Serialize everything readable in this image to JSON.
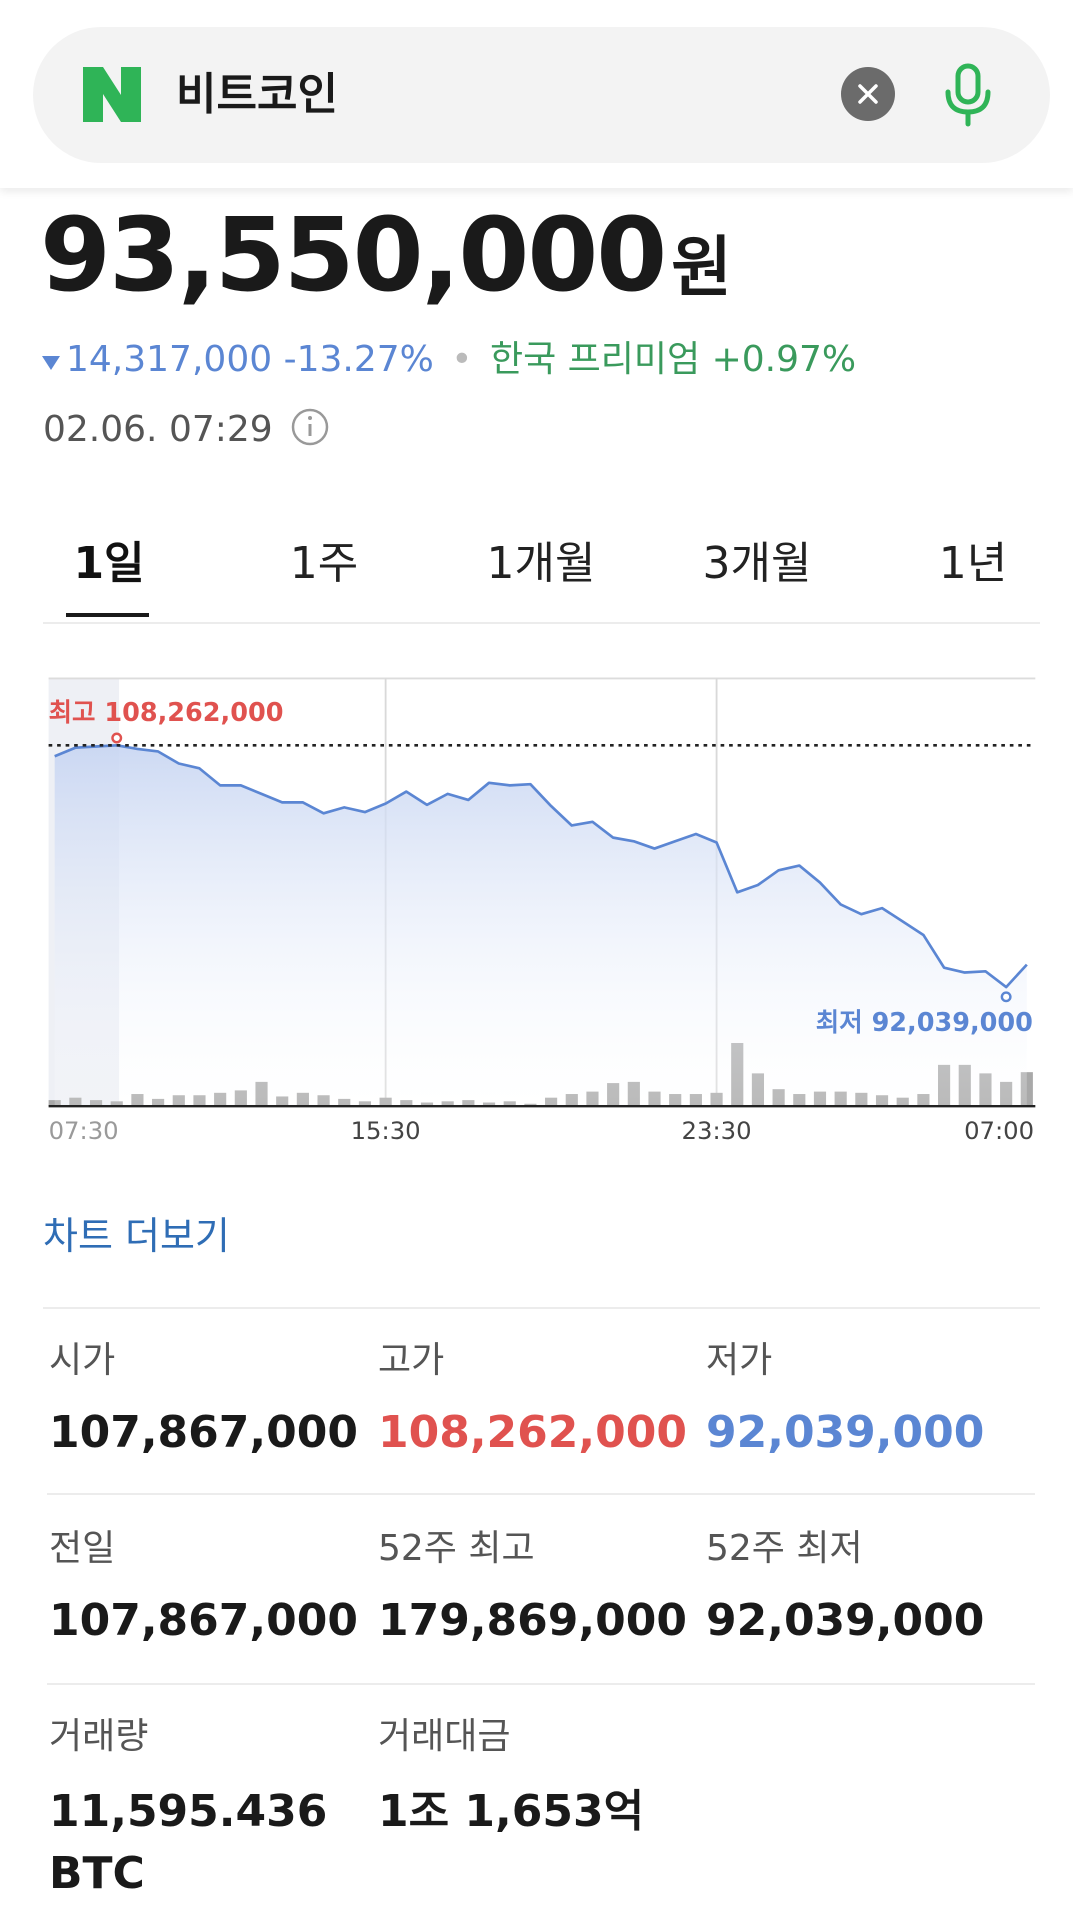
{
  "search": {
    "logo": "N",
    "query": "비트코인"
  },
  "quote": {
    "price": "93,550,000",
    "unit": "원",
    "change": "14,317,000",
    "change_pct": "-13.27%",
    "change_color": "#5b86d3",
    "premium_label": "한국 프리미엄",
    "premium": "+0.97%",
    "premium_color": "#3a9a5c",
    "time": "02.06. 07:29"
  },
  "tabs": [
    "1일",
    "1주",
    "1개월",
    "3개월",
    "1년"
  ],
  "chart_data": {
    "type": "line",
    "categories": [
      null,
      "07:30",
      null,
      null,
      null,
      null,
      null,
      null,
      null,
      null,
      null,
      null,
      null,
      null,
      null,
      null,
      "15:30",
      null,
      null,
      null,
      null,
      null,
      null,
      null,
      null,
      null,
      null,
      null,
      null,
      null,
      null,
      null,
      "23:30",
      null,
      null,
      null,
      null,
      null,
      null,
      null,
      null,
      null,
      null,
      null,
      null,
      null,
      "07:00",
      null
    ],
    "series": [
      {
        "values": [
          107530000,
          108100000,
          108180000,
          108262000,
          108020000,
          107850000,
          107040000,
          106710000,
          105570000,
          105570000,
          105000000,
          104430000,
          104430000,
          103700000,
          104100000,
          103780000,
          104350000,
          105160000,
          104270000,
          105000000,
          104590000,
          105740000,
          105570000,
          105650000,
          104190000,
          102880000,
          103130000,
          102070000,
          101820000,
          101330000,
          101820000,
          102310000,
          101740000,
          98400000,
          98890000,
          99870000,
          100190000,
          99050000,
          97580000,
          96930000,
          97340000,
          96440000,
          95540000,
          93340000,
          93020000,
          93100000,
          92039000,
          93550000
        ],
        "color": "#5b86d3"
      },
      {
        "type": "bar",
        "axis": "y2",
        "values": [
          5,
          7,
          5,
          4,
          10,
          6,
          9,
          9,
          11,
          13,
          20,
          8,
          11,
          9,
          6,
          4,
          7,
          5,
          3,
          4,
          5,
          3,
          4,
          2,
          7,
          10,
          12,
          19,
          20,
          12,
          10,
          10,
          11,
          52,
          27,
          14,
          10,
          12,
          12,
          11,
          9,
          7,
          10,
          34,
          34,
          27,
          20,
          28
        ],
        "color": "#a9a9a9"
      }
    ],
    "ylim": [
      88941000,
      112746000
    ],
    "y2lim": [
      0,
      352
    ],
    "grid": true,
    "annotations": [
      {
        "text": "최고 108,262,000",
        "color": "#e0524f"
      },
      {
        "text": "최저 92,039,000",
        "color": "#5b86d3"
      }
    ]
  },
  "more": "차트 더보기",
  "stats": [
    [
      {
        "label": "시가",
        "value": "107,867,000"
      },
      {
        "label": "고가",
        "value": "108,262,000",
        "color": "#e0524f"
      },
      {
        "label": "저가",
        "value": "92,039,000",
        "color": "#5b86d3"
      }
    ],
    [
      {
        "label": "전일",
        "value": "107,867,000"
      },
      {
        "label": "52주 최고",
        "value": "179,869,000"
      },
      {
        "label": "52주 최저",
        "value": "92,039,000"
      }
    ],
    [
      {
        "label": "거래량",
        "value": "11,595.436 BTC"
      },
      {
        "label": "거래대금",
        "value": "1조 1,653억"
      }
    ]
  ]
}
